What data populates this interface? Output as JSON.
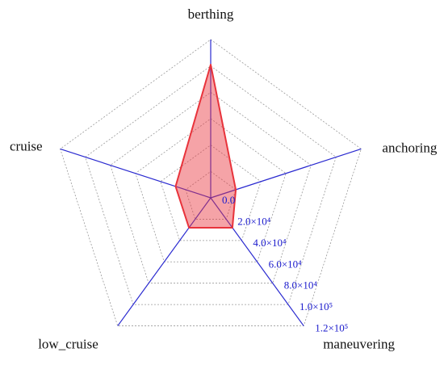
{
  "chart_data": {
    "type": "radar",
    "categories": [
      "berthing",
      "anchoring",
      "maneuvering",
      "low_cruise",
      "cruise"
    ],
    "values": [
      101000,
      20000,
      28000,
      28000,
      28000
    ],
    "color": "#e8333b",
    "rlim": [
      0,
      120000
    ],
    "rticks": [
      {
        "value": 0,
        "label": "0.0"
      },
      {
        "value": 20000,
        "label": "2.0×10⁴"
      },
      {
        "value": 40000,
        "label": "4.0×10⁴"
      },
      {
        "value": 60000,
        "label": "6.0×10⁴"
      },
      {
        "value": 80000,
        "label": "8.0×10⁴"
      },
      {
        "value": 100000,
        "label": "1.0×10⁵"
      },
      {
        "value": 120000,
        "label": "1.2×10⁵"
      }
    ],
    "grid": true
  }
}
